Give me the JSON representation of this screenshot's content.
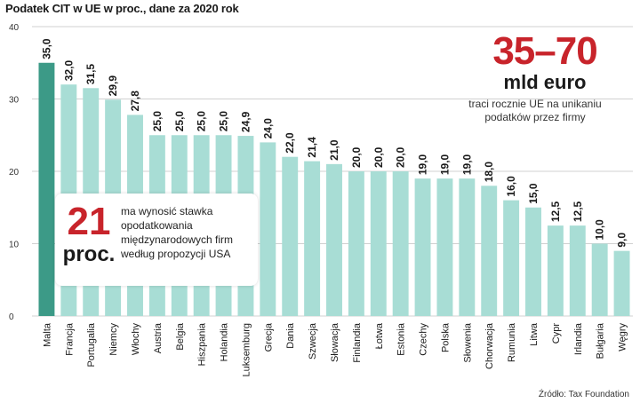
{
  "title": "Podatek CIT w UE w proc., dane za 2020 rok",
  "source": "Źródło: Tax Foundation",
  "callout_big": {
    "number": "35–70",
    "unit": "mld euro",
    "desc": "traci rocznie UE na unikaniu podatków przez firmy"
  },
  "callout_small": {
    "number": "21",
    "unit": "proc.",
    "desc": "ma wynosić stawka opodatkowania międzynarodowych firm według propozycji USA"
  },
  "colors": {
    "highlight": "#3c9a87",
    "bar": "#a8ddd5",
    "grid": "#d0d0d0",
    "text": "#1a1a1a"
  },
  "chart_data": {
    "type": "bar",
    "title": "Podatek CIT w UE w proc., dane za 2020 rok",
    "xlabel": "",
    "ylabel": "",
    "ylim": [
      0,
      40
    ],
    "yticks": [
      "0",
      "10",
      "20",
      "30",
      "40"
    ],
    "grid": true,
    "categories": [
      "Malta",
      "Francja",
      "Portugalia",
      "Niemcy",
      "Włochy",
      "Austria",
      "Belgia",
      "Hiszpania",
      "Holandia",
      "Luksemburg",
      "Grecja",
      "Dania",
      "Szwecja",
      "Słowacja",
      "Finlandia",
      "Łotwa",
      "Estonia",
      "Czechy",
      "Polska",
      "Słowenia",
      "Chorwacja",
      "Rumunia",
      "Litwa",
      "Cypr",
      "Irlandia",
      "Bułgaria",
      "Węgry"
    ],
    "values": [
      35.0,
      32.0,
      31.5,
      29.9,
      27.8,
      25.0,
      25.0,
      25.0,
      25.0,
      24.9,
      24.0,
      22.0,
      21.4,
      21.0,
      20.0,
      20.0,
      20.0,
      19.0,
      19.0,
      19.0,
      18.0,
      16.0,
      15.0,
      12.5,
      12.5,
      10.0,
      9.0
    ],
    "labels": [
      "35,0",
      "32,0",
      "31,5",
      "29,9",
      "27,8",
      "25,0",
      "25,0",
      "25,0",
      "25,0",
      "24,9",
      "24,0",
      "22,0",
      "21,4",
      "21,0",
      "20,0",
      "20,0",
      "20,0",
      "19,0",
      "19,0",
      "19,0",
      "18,0",
      "16,0",
      "15,0",
      "12,5",
      "12,5",
      "10,0",
      "9,0"
    ],
    "highlight": [
      "Malta"
    ]
  }
}
